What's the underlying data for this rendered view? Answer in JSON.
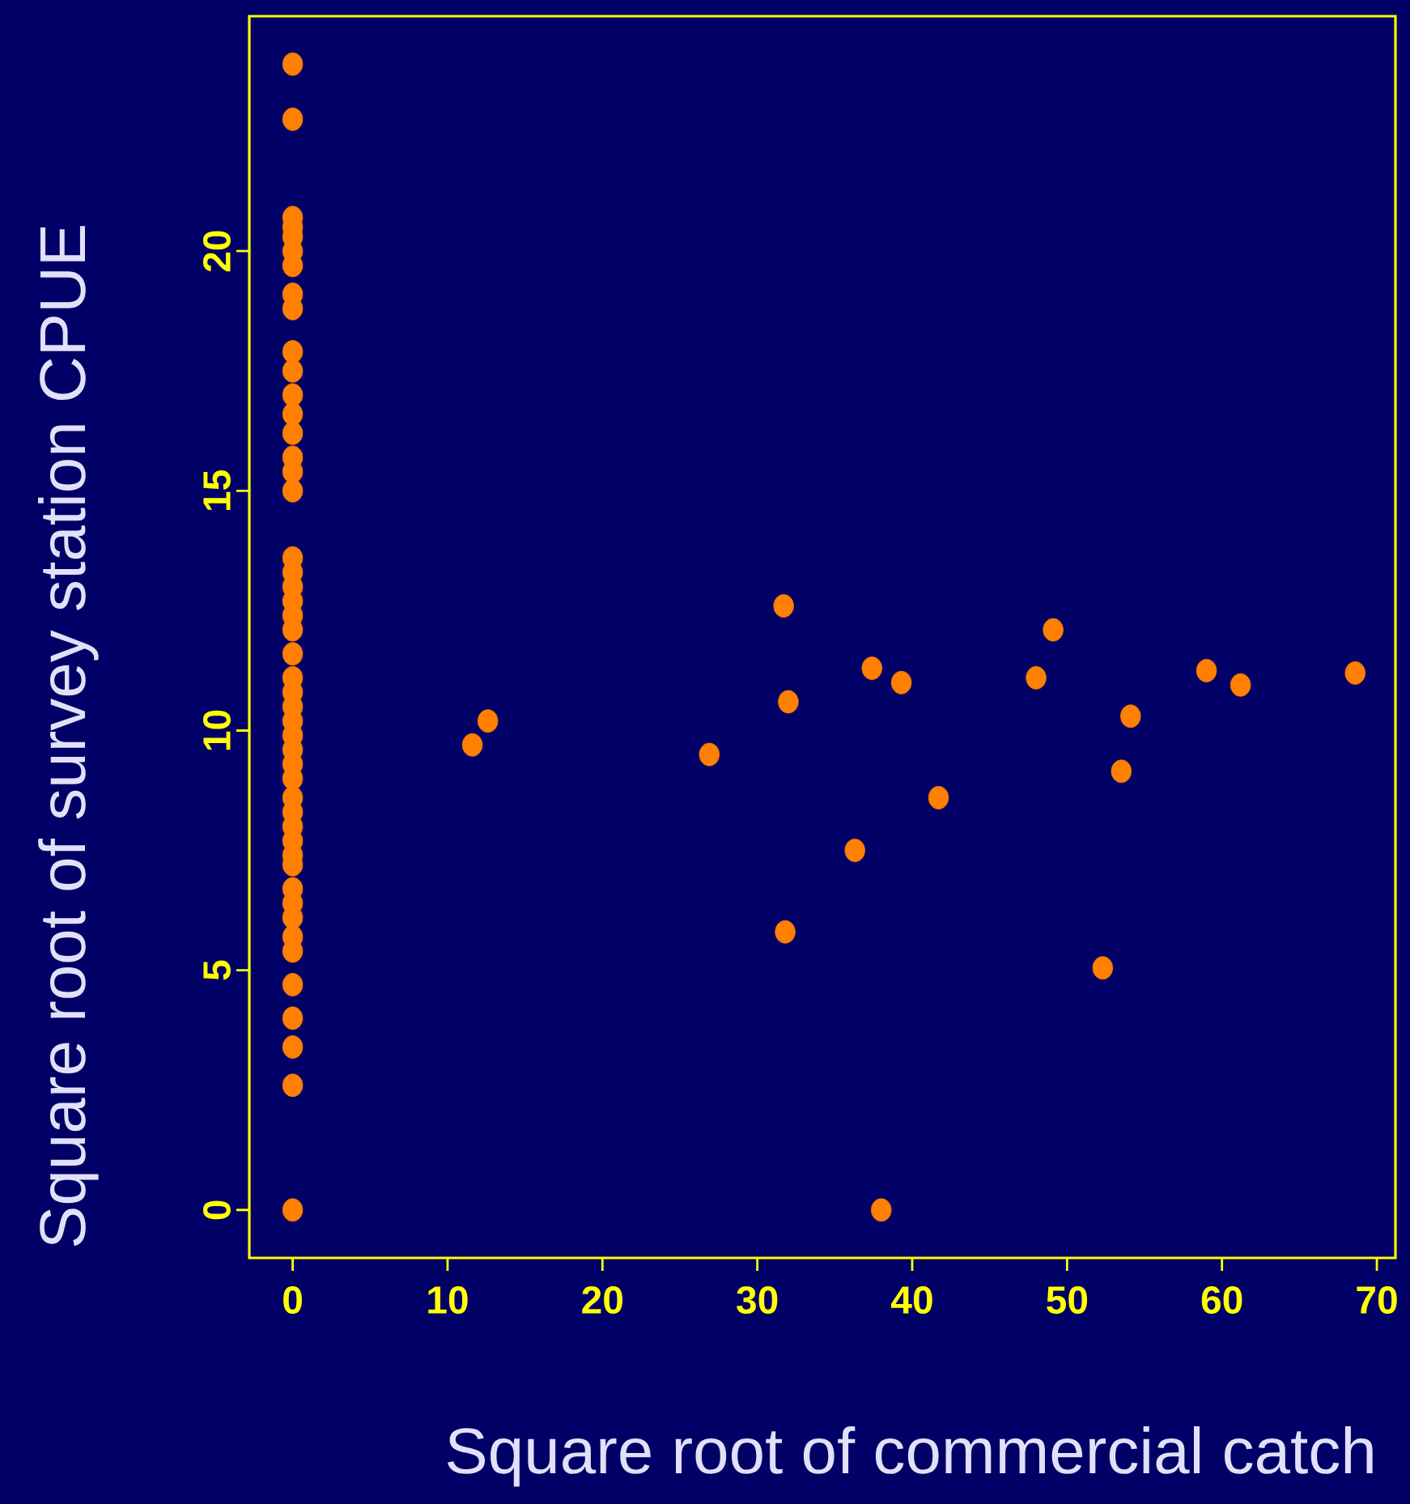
{
  "chart_data": {
    "type": "scatter",
    "xlabel": "Square root of commercial catch",
    "ylabel": "Square root of survey station CPUE",
    "x": [
      0,
      0,
      0,
      0,
      0,
      0,
      0,
      0,
      0,
      0,
      0,
      0,
      0,
      0,
      0,
      0,
      0,
      0,
      0,
      0,
      0,
      0,
      0,
      0,
      0,
      0,
      0,
      0,
      0,
      0,
      0,
      0,
      0,
      0,
      0,
      0,
      0,
      0,
      0,
      0,
      0,
      0,
      0,
      0,
      0,
      0,
      0,
      0,
      11.6,
      12.6,
      26.9,
      31.7,
      31.8,
      32.0,
      36.3,
      37.4,
      38.0,
      39.3,
      41.7,
      48.0,
      49.1,
      52.3,
      53.5,
      54.1,
      59.0,
      61.2,
      68.6
    ],
    "values": [
      23.9,
      22.75,
      20.7,
      20.5,
      20.3,
      20.0,
      19.7,
      19.1,
      18.8,
      17.9,
      17.5,
      17.0,
      16.6,
      16.2,
      15.7,
      15.4,
      15.0,
      13.6,
      13.3,
      13.0,
      12.7,
      12.4,
      12.1,
      11.6,
      11.1,
      10.8,
      10.5,
      10.2,
      9.9,
      9.6,
      9.3,
      9.0,
      8.6,
      8.3,
      8.0,
      7.7,
      7.4,
      7.2,
      6.7,
      6.4,
      6.1,
      5.7,
      5.4,
      4.7,
      4.0,
      3.4,
      2.6,
      0.0,
      9.7,
      10.2,
      9.5,
      12.6,
      5.8,
      10.6,
      7.5,
      11.3,
      0.0,
      11.0,
      8.6,
      11.1,
      12.1,
      5.05,
      9.15,
      10.3,
      11.25,
      10.95,
      11.2
    ],
    "color": "#ff7f00",
    "xlim": [
      -2.8,
      71.2
    ],
    "ylim": [
      -1.0,
      24.9
    ],
    "xticks": [
      0,
      10,
      20,
      30,
      40,
      50,
      60,
      70
    ],
    "yticks": [
      0,
      5,
      10,
      15,
      20
    ]
  }
}
